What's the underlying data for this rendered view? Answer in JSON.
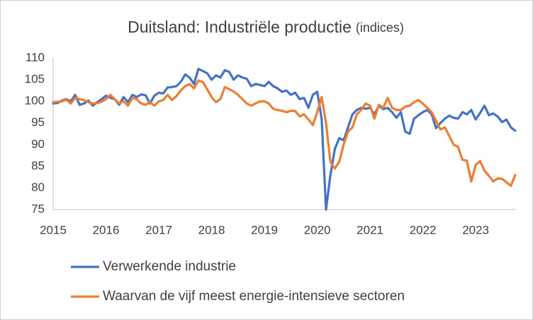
{
  "chart_data": {
    "type": "line",
    "title": "Duitsland: Industriële productie",
    "subtitle": "(indices)",
    "categories": [
      "2015",
      null,
      null,
      null,
      null,
      null,
      null,
      null,
      null,
      null,
      null,
      null,
      "2016",
      null,
      null,
      null,
      null,
      null,
      null,
      null,
      null,
      null,
      null,
      null,
      "2017",
      null,
      null,
      null,
      null,
      null,
      null,
      null,
      null,
      null,
      null,
      null,
      "2018",
      null,
      null,
      null,
      null,
      null,
      null,
      null,
      null,
      null,
      null,
      null,
      "2019",
      null,
      null,
      null,
      null,
      null,
      null,
      null,
      null,
      null,
      null,
      null,
      "2020",
      null,
      null,
      null,
      null,
      null,
      null,
      null,
      null,
      null,
      null,
      null,
      "2021",
      null,
      null,
      null,
      null,
      null,
      null,
      null,
      null,
      null,
      null,
      null,
      "2022",
      null,
      null,
      null,
      null,
      null,
      null,
      null,
      null,
      null,
      null,
      null,
      "2023",
      null,
      null,
      null,
      null,
      null,
      null,
      null,
      null,
      null
    ],
    "series": [
      {
        "name": "Verwerkende industrie",
        "color": "#4472c4",
        "values": [
          99.5,
          99.6,
          100.2,
          100.5,
          100.0,
          101.5,
          99.2,
          99.5,
          100.2,
          99.0,
          99.8,
          100.5,
          101.3,
          100.8,
          100.5,
          99.2,
          101.0,
          99.8,
          101.5,
          101.0,
          101.6,
          101.4,
          99.5,
          101.3,
          102.0,
          101.8,
          103.2,
          103.3,
          103.5,
          104.5,
          106.2,
          105.5,
          104.0,
          107.5,
          107.0,
          106.5,
          105.0,
          106.0,
          105.5,
          107.2,
          106.8,
          105.0,
          106.0,
          105.5,
          105.2,
          103.5,
          104.0,
          103.8,
          103.5,
          104.5,
          103.5,
          103.0,
          102.2,
          102.5,
          101.5,
          102.0,
          100.5,
          100.8,
          98.5,
          101.5,
          102.2,
          96.0,
          75.0,
          83.0,
          89.0,
          91.5,
          91.0,
          94.0,
          97.0,
          98.0,
          98.5,
          98.3,
          98.5,
          97.0,
          99.0,
          98.2,
          98.5,
          97.5,
          96.2,
          97.5,
          93.0,
          92.5,
          96.0,
          96.8,
          97.5,
          98.0,
          97.0,
          93.8,
          95.0,
          96.0,
          96.7,
          96.2,
          96.0,
          97.5,
          97.0,
          98.0,
          95.8,
          97.3,
          99.0,
          96.8,
          97.2,
          96.5,
          95.2,
          95.8,
          94.0,
          93.2
        ]
      },
      {
        "name": "Waarvan de vijf meest energie-intensieve sectoren",
        "color": "#ed7d31",
        "values": [
          99.8,
          99.9,
          100.0,
          100.4,
          99.5,
          100.8,
          100.5,
          100.3,
          99.8,
          99.5,
          99.6,
          99.9,
          100.5,
          101.5,
          100.5,
          99.5,
          100.0,
          99.0,
          100.8,
          100.5,
          99.5,
          99.2,
          99.8,
          99.0,
          100.0,
          100.3,
          101.5,
          100.3,
          101.2,
          102.5,
          103.5,
          104.0,
          103.0,
          104.8,
          104.5,
          102.8,
          101.0,
          99.8,
          100.5,
          103.3,
          102.8,
          102.3,
          101.5,
          100.5,
          99.5,
          99.0,
          99.5,
          100.0,
          100.0,
          99.5,
          98.3,
          98.0,
          97.8,
          97.5,
          97.8,
          97.8,
          96.5,
          97.0,
          95.8,
          94.5,
          97.5,
          101.0,
          95.0,
          86.0,
          84.5,
          86.0,
          90.0,
          93.0,
          94.0,
          97.0,
          98.0,
          99.5,
          99.0,
          96.0,
          99.2,
          98.5,
          100.8,
          98.5,
          98.0,
          98.0,
          98.8,
          99.0,
          99.8,
          100.3,
          99.5,
          98.5,
          97.5,
          95.5,
          93.5,
          94.0,
          92.0,
          90.0,
          89.5,
          86.5,
          86.3,
          81.5,
          85.3,
          86.2,
          84.0,
          82.8,
          81.5,
          82.2,
          82.1,
          81.3,
          80.5,
          83.0
        ]
      }
    ],
    "ylim": [
      75,
      110
    ],
    "yticks": [
      75,
      80,
      85,
      90,
      95,
      100,
      105,
      110
    ],
    "grid": false
  }
}
